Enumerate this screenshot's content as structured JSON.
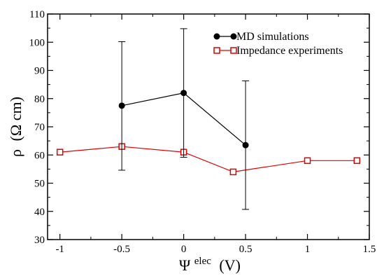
{
  "chart_data": {
    "type": "line",
    "xlabel": {
      "symbol": "Ψ",
      "superscript": "elec",
      "unit": "(V)"
    },
    "ylabel": {
      "symbol": "ρ",
      "unit": "(Ω cm)"
    },
    "xlim": [
      -1.1,
      1.5
    ],
    "ylim": [
      30,
      110
    ],
    "x_ticks": [
      -1,
      -0.5,
      0,
      0.5,
      1,
      1.5
    ],
    "x_tick_labels": [
      "-1",
      "-0.5",
      "0",
      "0.5",
      "1",
      "1.5"
    ],
    "y_ticks": [
      30,
      40,
      50,
      60,
      70,
      80,
      90,
      100,
      110
    ],
    "y_tick_labels": [
      "30",
      "40",
      "50",
      "60",
      "70",
      "80",
      "90",
      "100",
      "110"
    ],
    "grid": false,
    "legend_position": "top-right",
    "series": [
      {
        "name": "MD simulations",
        "color": "#000000",
        "marker": "filled-circle",
        "x": [
          -0.5,
          0,
          0.5
        ],
        "y": [
          77.5,
          82,
          63.5
        ],
        "error_low": [
          54.6,
          59.2,
          40.7
        ],
        "error_high": [
          100.2,
          104.8,
          86.3
        ]
      },
      {
        "name": "Impedance experiments",
        "color": "#e00000",
        "marker": "open-square",
        "x": [
          -1,
          -0.5,
          0,
          0.4,
          1,
          1.4
        ],
        "y": [
          61,
          63,
          61,
          54,
          58,
          58
        ]
      }
    ]
  }
}
